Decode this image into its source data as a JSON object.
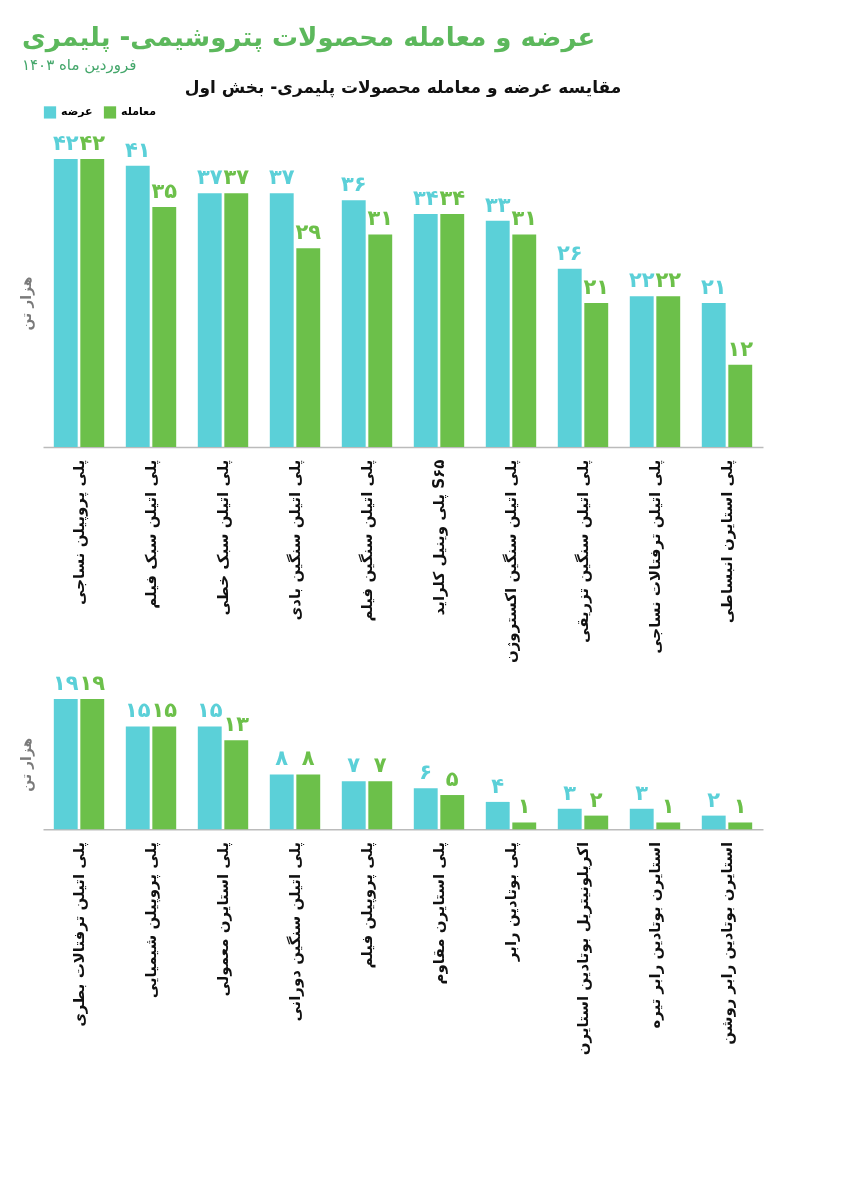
{
  "chart_data": [
    {
      "type": "other",
      "title": "عرضه و معامله محصولات پتروشیمی- پلیمری",
      "subtitle": "فروردین ماه ۱۴۰۳"
    },
    {
      "type": "bar",
      "title": "مقایسه عرضه و معامله محصولات پلیمری- بخش اول",
      "ylabel": "هزار تن",
      "legend": "top",
      "categories": [
        "پلی پروپیلن نساجی",
        "پلی اتیلن سبک فیلم",
        "پلی اتیلن سبک خطی",
        "پلی اتیلن سنگین بادی",
        "پلی اتیلن سنگین فیلم",
        "پلی وینیل کلراید S۶۵",
        "پلی اتیلن سنگین اکستروژن",
        "پلی اتیلن سنگین تزریقی",
        "پلی اتیلن ترفتالات نساجی",
        "پلی استایرن انبساطی"
      ],
      "series": [
        {
          "name": "عرضه",
          "color": "#5bd0d8",
          "values": [
            42,
            41,
            37,
            37,
            36,
            34,
            33,
            26,
            22,
            21
          ],
          "value_labels": [
            "۴۲",
            "۴۱",
            "۳۷",
            "۳۷",
            "۳۶",
            "۳۴",
            "۳۳",
            "۲۶",
            "۲۲",
            "۲۱"
          ]
        },
        {
          "name": "معامله",
          "color": "#6cc04a",
          "values": [
            42,
            35,
            37,
            29,
            31,
            34,
            31,
            21,
            22,
            12
          ],
          "value_labels": [
            "۴۲",
            "۳۵",
            "۳۷",
            "۲۹",
            "۳۱",
            "۳۴",
            "۳۱",
            "۲۱",
            "۲۲",
            "۱۲"
          ]
        }
      ]
    },
    {
      "type": "bar",
      "ylabel": "هزار تن",
      "categories": [
        "پلی اتیلن ترفتالات بطری",
        "پلی پروپیلن شیمیایی",
        "پلی استایرن معمولی",
        "پلی اتیلن سنگین دورانی",
        "پلی پروپیلن فیلم",
        "پلی استایرن مقاوم",
        "پلی بوتادین رابر",
        "اکریلونیتریل بوتادین استایرن",
        "استایرن بوتادین رابر تیره",
        "استایرن بوتادین رابر روشن"
      ],
      "series": [
        {
          "color": "#5bd0d8",
          "values": [
            19,
            15,
            15,
            8,
            7,
            6,
            4,
            3,
            3,
            2
          ],
          "value_labels": [
            "۱۹",
            "۱۵",
            "۱۵",
            "۸",
            "۷",
            "۶",
            "۴",
            "۳",
            "۳",
            "۲"
          ]
        },
        {
          "color": "#6cc04a",
          "values": [
            19,
            15,
            13,
            8,
            7,
            5,
            1,
            2,
            1,
            1
          ],
          "value_labels": [
            "۱۹",
            "۱۵",
            "۱۳",
            "۸",
            "۷",
            "۵",
            "۱",
            "۲",
            "۱",
            "۱"
          ]
        }
      ]
    }
  ]
}
